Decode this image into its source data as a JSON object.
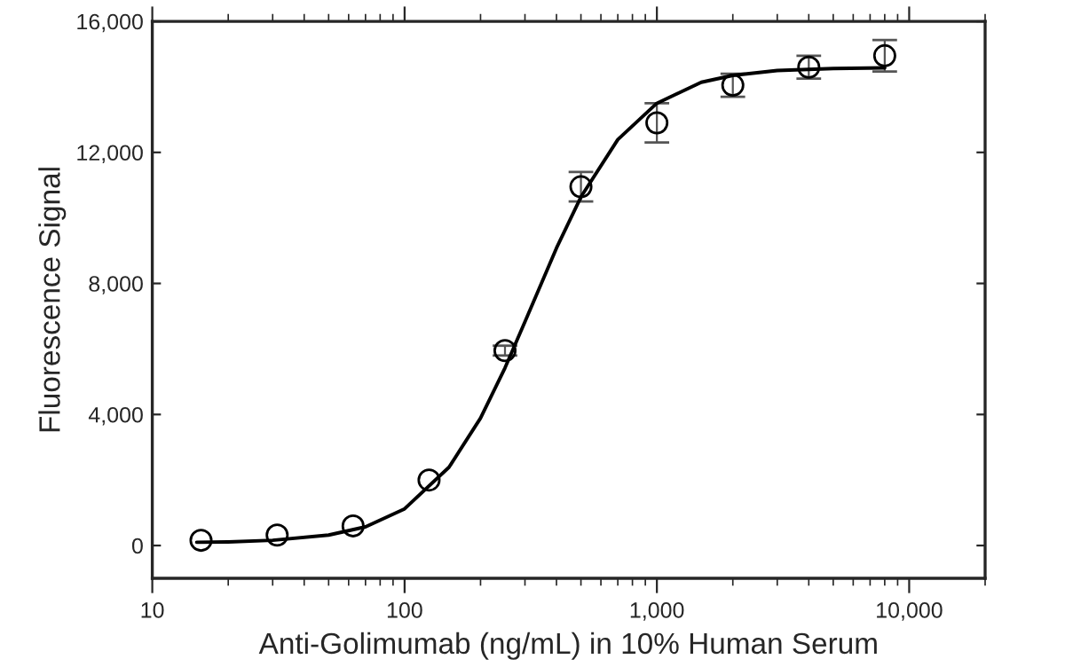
{
  "chart_data": {
    "type": "scatter",
    "xlabel": "Anti-Golimumab (ng/mL) in 10% Human Serum",
    "ylabel": "Fluorescence Signal",
    "log": "x",
    "grid": false,
    "legend": false,
    "xlim": [
      10,
      20000
    ],
    "xticks": [
      10,
      100,
      {
        "value": 1000,
        "label": "1,000"
      },
      {
        "value": 10000,
        "label": "10,000"
      }
    ],
    "ylim": [
      -1000,
      16000
    ],
    "yticks": [
      0,
      {
        "value": 4000,
        "label": "4,000"
      },
      {
        "value": 8000,
        "label": "8,000"
      },
      {
        "value": 12000,
        "label": "12,000"
      },
      {
        "value": 16000,
        "label": "16,000"
      }
    ],
    "series": [
      {
        "color": "#000000",
        "marker": "circle",
        "x": [
          15.6,
          31.25,
          62.5,
          125,
          250,
          500,
          1000,
          2000,
          4000,
          8000
        ],
        "values": [
          160,
          320,
          600,
          2000,
          5950,
          10950,
          12900,
          14050,
          14600,
          14950
        ],
        "errors": [
          null,
          null,
          null,
          null,
          150,
          450,
          600,
          350,
          350,
          480
        ]
      },
      {
        "type": "line",
        "color": "#000000",
        "marker": "none",
        "line_style": "solid",
        "x": [
          15,
          20,
          30,
          50,
          70,
          100,
          150,
          200,
          250,
          300,
          400,
          500,
          700,
          1000,
          1500,
          2000,
          3000,
          5000,
          8000
        ],
        "values": [
          100,
          110,
          160,
          320,
          570,
          1120,
          2390,
          3890,
          5420,
          6830,
          9080,
          10640,
          12390,
          13500,
          14140,
          14350,
          14500,
          14560,
          14580
        ]
      }
    ]
  }
}
